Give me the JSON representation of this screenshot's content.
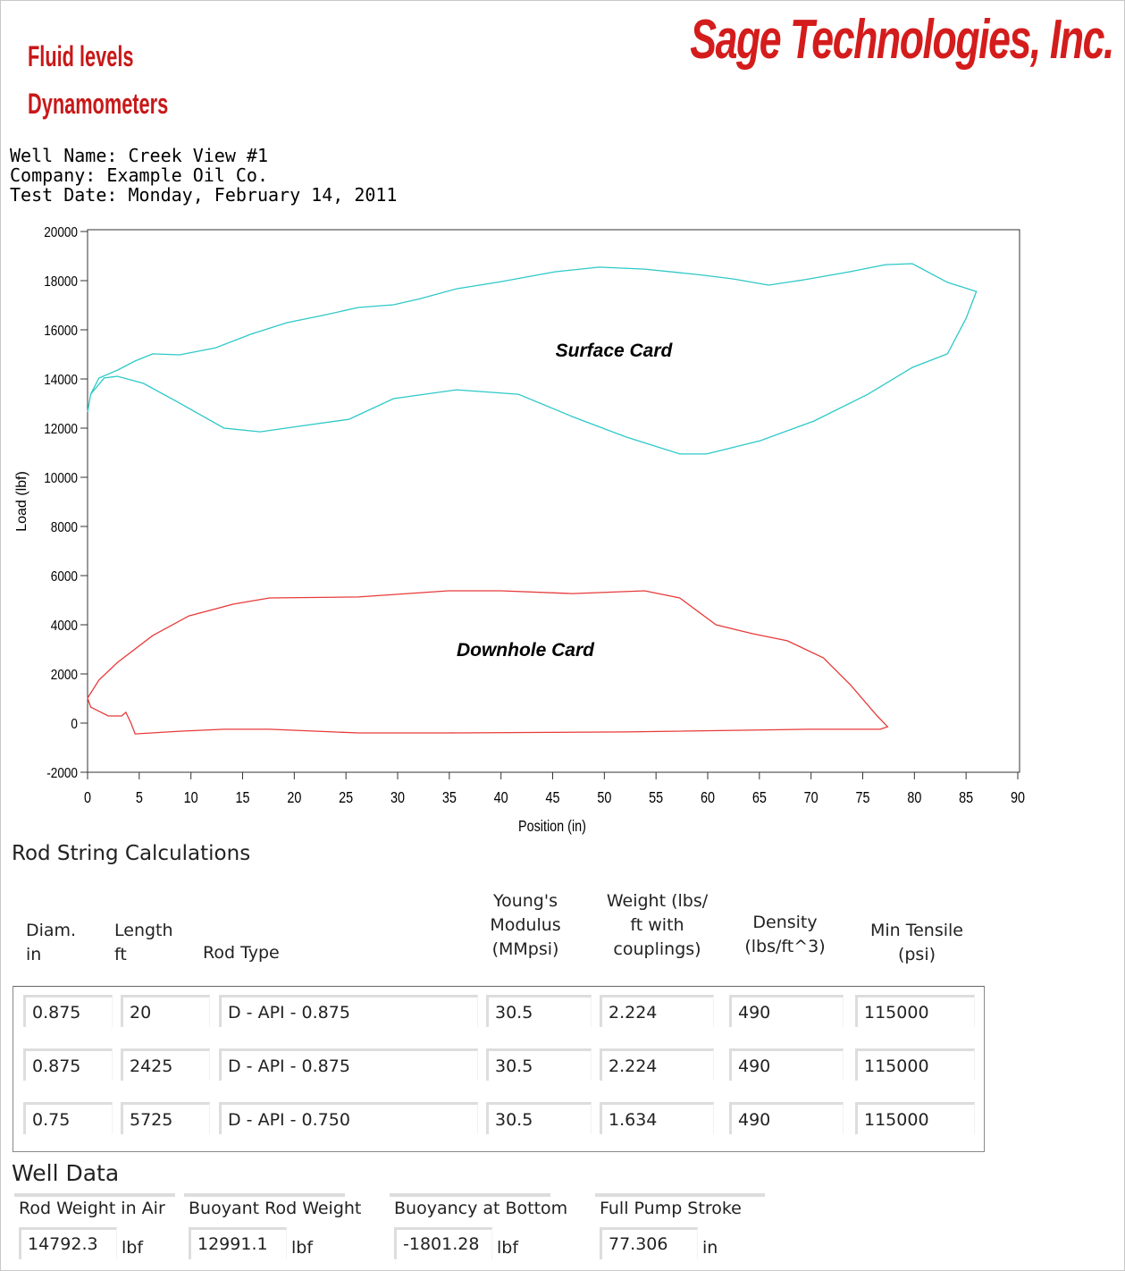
{
  "header": {
    "logo": "Sage Technologies, Inc.",
    "lines": [
      "Fluid levels",
      "Dynamometers"
    ]
  },
  "well_info": [
    "Well Name: Creek View #1",
    "Company: Example Oil Co.",
    "Test Date: Monday, February 14, 2011"
  ],
  "chart_data": {
    "type": "line",
    "x_label": "Position (in)",
    "y_label": "Load (lbf)",
    "annotations": [
      "Surface Card",
      "Downhole Card"
    ],
    "xlim": [
      0,
      90
    ],
    "xticks": [
      0,
      5,
      10,
      15,
      20,
      25,
      30,
      35,
      40,
      45,
      50,
      55,
      60,
      65,
      70,
      75,
      80,
      85,
      90
    ],
    "ylim": [
      -2000,
      20000
    ],
    "yticks": [
      -2000,
      0,
      2000,
      4000,
      6000,
      8000,
      10000,
      12000,
      14000,
      16000,
      18000,
      20000
    ],
    "grid": false,
    "series": [
      {
        "name": "Surface Card",
        "color": "#2ec8c8",
        "x": [
          0,
          0.3,
          1.1,
          2.9,
          4.6,
          6.3,
          8.9,
          12.4,
          15.8,
          19.3,
          22.7,
          26.2,
          29.6,
          32.2,
          35.7,
          40,
          45.2,
          49.5,
          53.9,
          59,
          62.5,
          65.9,
          69.4,
          73.7,
          77.2,
          79.8,
          83.2,
          86,
          85,
          83.2,
          79.8,
          75.5,
          70.3,
          65.1,
          59.9,
          57.3,
          52.1,
          46.9,
          41.7,
          35.7,
          29.6,
          25.3,
          21,
          16.7,
          13.2,
          8.9,
          5.4,
          2.9,
          1.6,
          0.3,
          0
        ],
        "values": [
          12650,
          13380,
          14036,
          14360,
          14730,
          15020,
          14980,
          15270,
          15820,
          16290,
          16580,
          16910,
          17020,
          17270,
          17670,
          17960,
          18360,
          18550,
          18470,
          18250,
          18070,
          17820,
          18040,
          18360,
          18650,
          18690,
          17930,
          17560,
          16470,
          15020,
          14470,
          13380,
          12290,
          11490,
          10950,
          10950,
          11640,
          12470,
          13380,
          13560,
          13200,
          12360,
          12110,
          11850,
          12000,
          13020,
          13820,
          14110,
          14040,
          13380,
          12650
        ]
      },
      {
        "name": "Downhole Card",
        "color": "#e83a3a",
        "x": [
          0,
          1.1,
          2.9,
          6.3,
          9.8,
          14.1,
          17.6,
          26.2,
          34.9,
          40,
          46.9,
          53.9,
          57.3,
          60.8,
          64.3,
          67.7,
          71.2,
          73.8,
          76.4,
          77.4,
          76.7,
          69.7,
          52.1,
          34.9,
          26.2,
          17.6,
          13.2,
          8.9,
          4.6,
          4.2,
          3.7,
          3.3,
          2,
          0.3,
          0
        ],
        "values": [
          1020,
          1750,
          2470,
          3560,
          4360,
          4840,
          5090,
          5130,
          5380,
          5380,
          5270,
          5380,
          5090,
          4000,
          3640,
          3350,
          2650,
          1560,
          290,
          -150,
          -250,
          -250,
          -360,
          -400,
          -400,
          -250,
          -250,
          -330,
          -440,
          0,
          440,
          290,
          290,
          650,
          1020
        ]
      }
    ]
  },
  "table": {
    "title": "Rod String Calculations",
    "headers": [
      "Diam.\nin",
      "Length\nft",
      "Rod Type",
      "Young's\nModulus\n(MMpsi)",
      "Weight (lbs/\nft with\ncouplings)",
      "Density\n(lbs/ft^3)",
      "Min Tensile\n(psi)"
    ],
    "rows": [
      [
        "0.875",
        "20",
        "D - API - 0.875",
        "30.5",
        "2.224",
        "490",
        "115000"
      ],
      [
        "0.875",
        "2425",
        "D - API - 0.875",
        "30.5",
        "2.224",
        "490",
        "115000"
      ],
      [
        "0.75",
        "5725",
        "D - API - 0.750",
        "30.5",
        "1.634",
        "490",
        "115000"
      ]
    ]
  },
  "well_data": {
    "title": "Well Data",
    "items": [
      {
        "label": "Rod Weight in Air",
        "value": "14792.3",
        "unit": "lbf"
      },
      {
        "label": "Buoyant Rod Weight",
        "value": "12991.1",
        "unit": "lbf"
      },
      {
        "label": "Buoyancy at Bottom",
        "value": "-1801.28",
        "unit": "lbf"
      },
      {
        "label": "Full Pump Stroke",
        "value": "77.306",
        "unit": "in"
      }
    ]
  }
}
